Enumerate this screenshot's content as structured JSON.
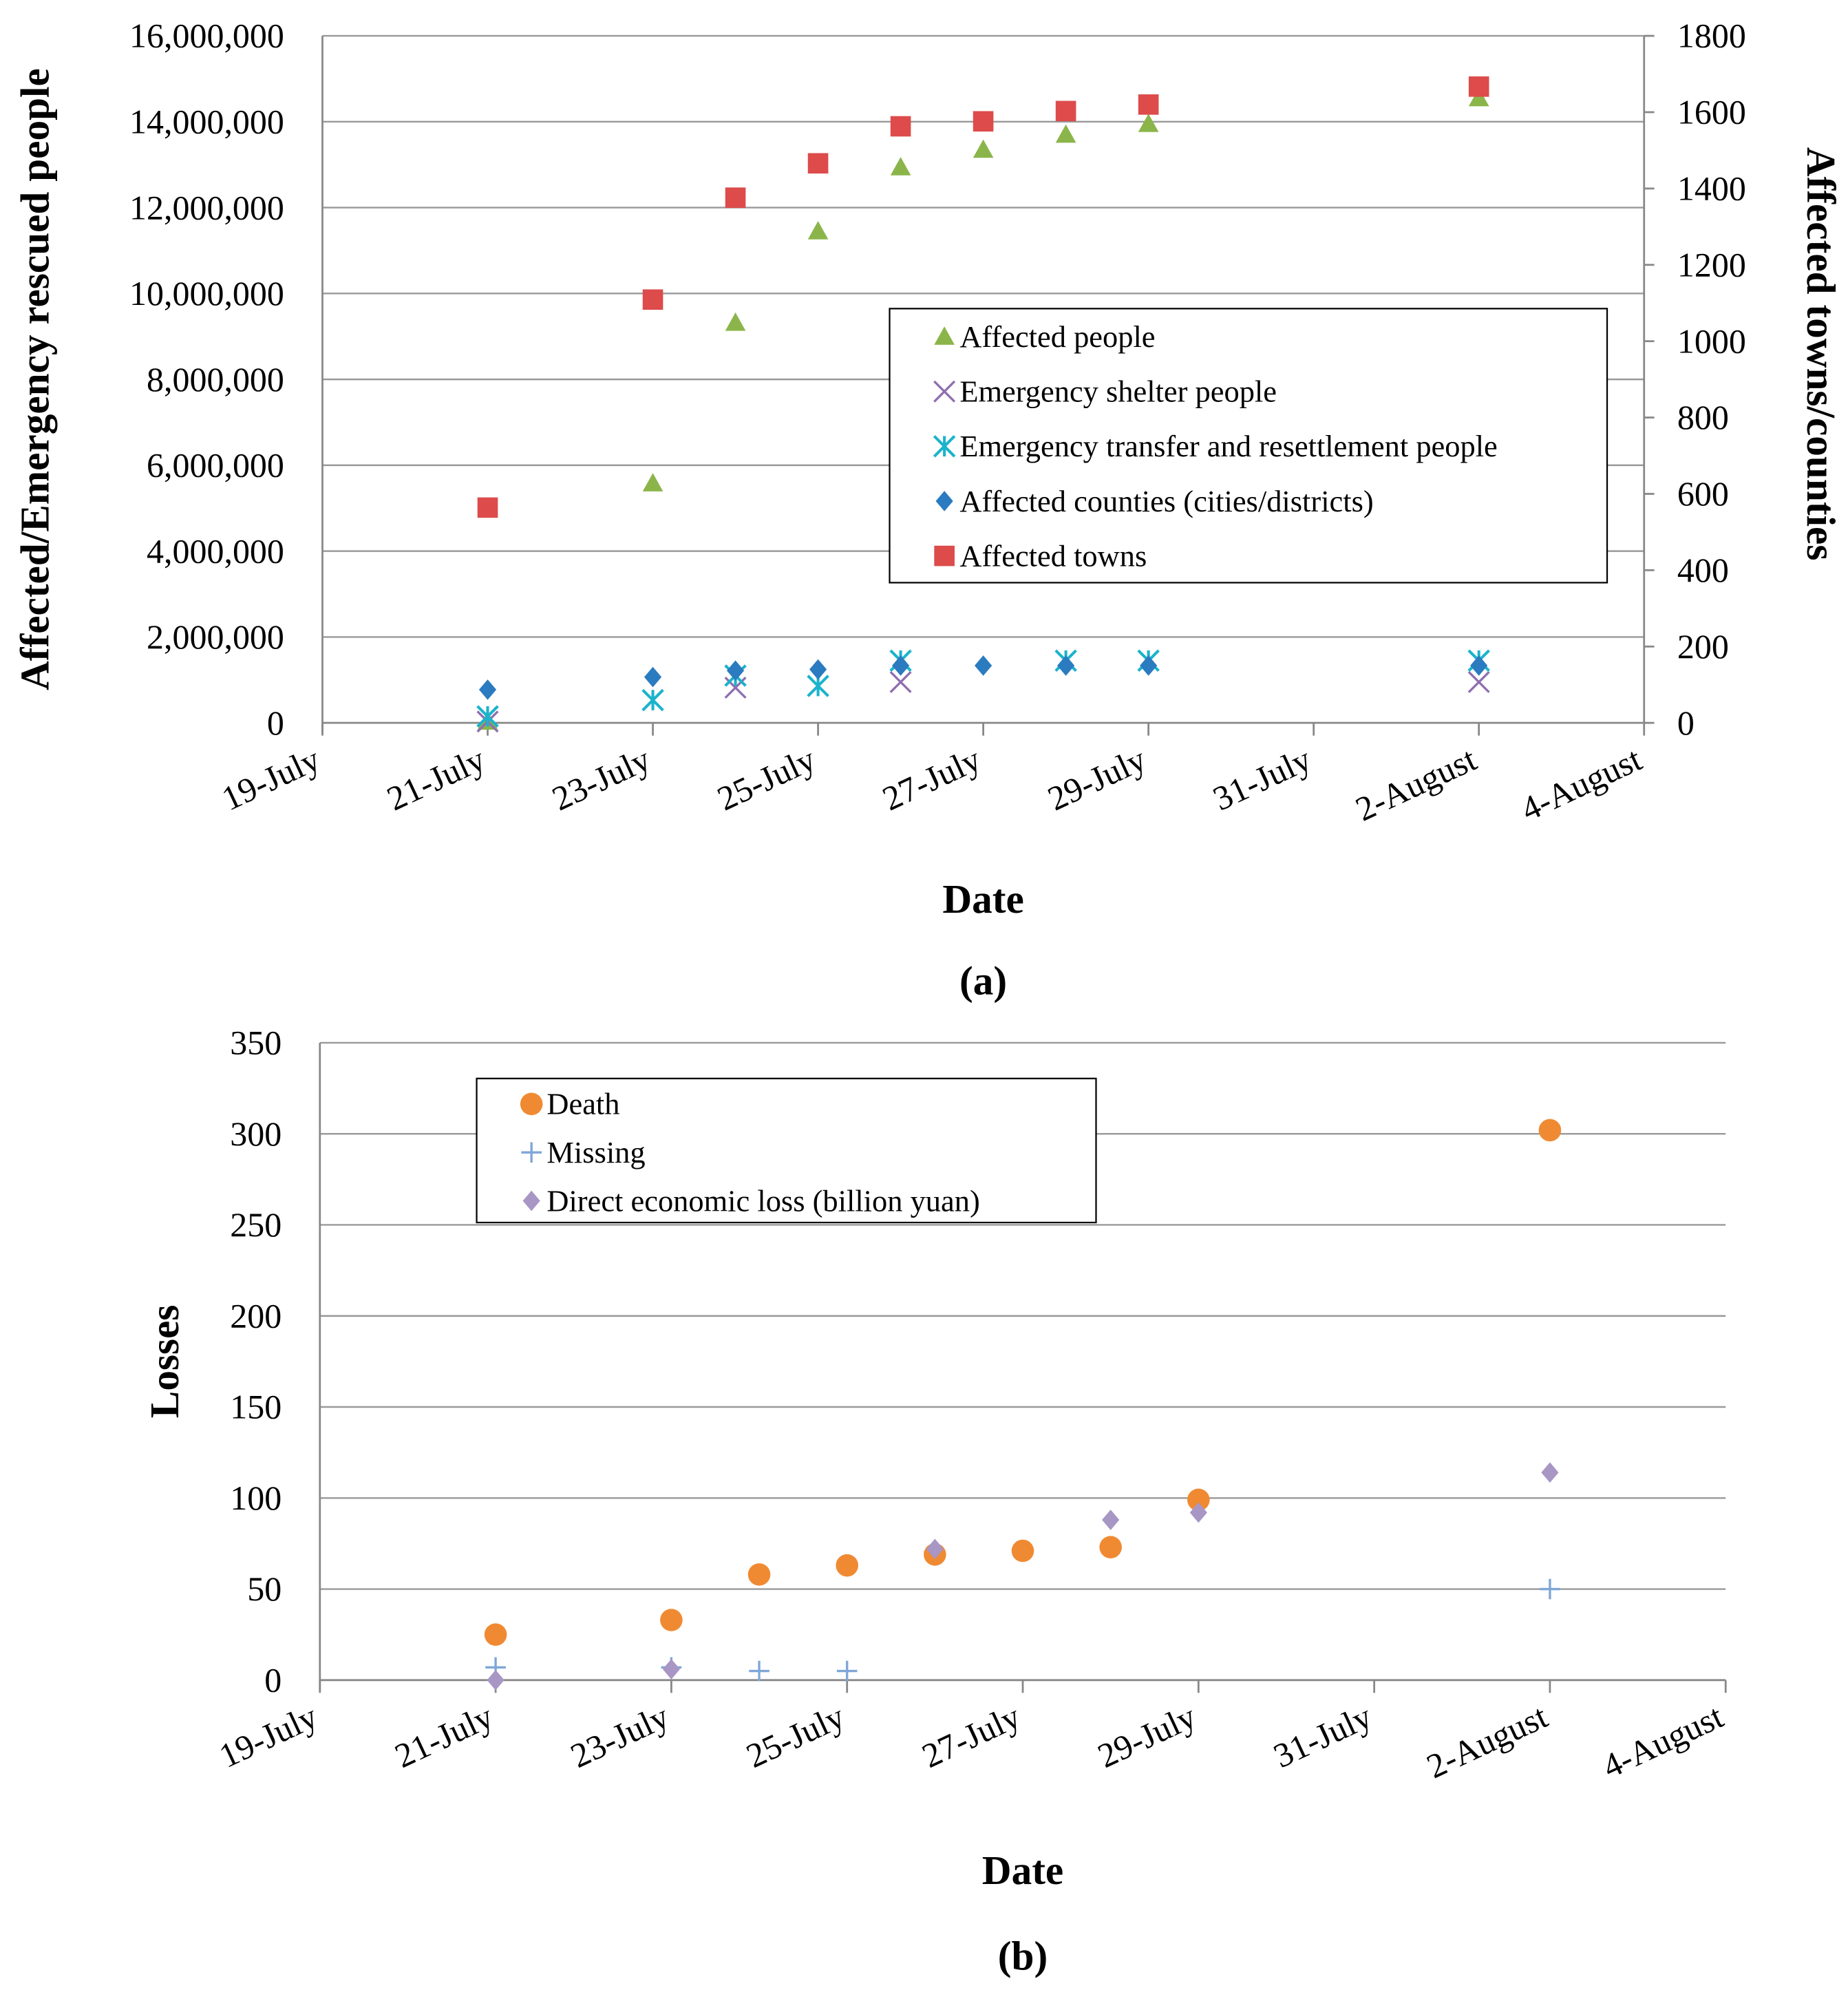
{
  "chart_data": [
    {
      "type": "scatter",
      "panel_label": "(a)",
      "xlabel": "Date",
      "ylabel": "Affected/Emergency  rescued people",
      "y2label": "Affected towns/counties",
      "x_ticks": [
        "19-July",
        "21-July",
        "23-July",
        "25-July",
        "27-July",
        "29-July",
        "31-July",
        "2-August",
        "4-August"
      ],
      "xlim_days": [
        0,
        16
      ],
      "ylim": [
        0,
        16000000
      ],
      "y_ticks": [
        "0",
        "2,000,000",
        "4,000,000",
        "6,000,000",
        "8,000,000",
        "10,000,000",
        "12,000,000",
        "14,000,000",
        "16,000,000"
      ],
      "y2lim": [
        0,
        1800
      ],
      "y2_ticks": [
        "0",
        "200",
        "400",
        "600",
        "800",
        "1000",
        "1200",
        "1400",
        "1600",
        "1800"
      ],
      "grid": true,
      "legend_position": "center-right",
      "x_unit": "days since 19-July",
      "series": [
        {
          "name": "Affected people",
          "axis": "left",
          "marker": "triangle",
          "color": "#8BB54A",
          "x": [
            2,
            4,
            5,
            6,
            7,
            8,
            9,
            10,
            14
          ],
          "y": [
            30000,
            5580000,
            9320000,
            11450000,
            12940000,
            13350000,
            13700000,
            13950000,
            14550000
          ]
        },
        {
          "name": "Emergency shelter people",
          "axis": "left",
          "marker": "x",
          "color": "#8E6FB0",
          "x": [
            2,
            5,
            7,
            14
          ],
          "y": [
            30000,
            820000,
            950000,
            950000
          ]
        },
        {
          "name": "Emergency transfer and resettlement people",
          "axis": "left",
          "marker": "asterisk",
          "color": "#1BB3CC",
          "x": [
            2,
            4,
            5,
            6,
            7,
            9,
            10,
            14
          ],
          "y": [
            150000,
            530000,
            1100000,
            860000,
            1450000,
            1450000,
            1450000,
            1450000
          ]
        },
        {
          "name": "Affected counties (cities/districts)",
          "axis": "right",
          "marker": "diamond",
          "color": "#2A7BC0",
          "x": [
            2,
            4,
            5,
            6,
            7,
            8,
            9,
            10,
            14
          ],
          "y": [
            87,
            120,
            137,
            140,
            150,
            150,
            150,
            150,
            150
          ]
        },
        {
          "name": "Affected towns",
          "axis": "right",
          "marker": "square",
          "color": "#DD4B4B",
          "x": [
            2,
            4,
            5,
            6,
            7,
            8,
            9,
            10,
            14
          ],
          "y": [
            564,
            1109,
            1376,
            1466,
            1563,
            1576,
            1603,
            1620,
            1667
          ]
        }
      ]
    },
    {
      "type": "scatter",
      "panel_label": "(b)",
      "xlabel": "Date",
      "ylabel": "Losses",
      "x_ticks": [
        "19-July",
        "21-July",
        "23-July",
        "25-July",
        "27-July",
        "29-July",
        "31-July",
        "2-August",
        "4-August"
      ],
      "xlim_days": [
        0,
        16
      ],
      "ylim": [
        0,
        350
      ],
      "y_ticks": [
        "0",
        "50",
        "100",
        "150",
        "200",
        "250",
        "300",
        "350"
      ],
      "grid": true,
      "legend_position": "top-left",
      "x_unit": "days since 19-July",
      "series": [
        {
          "name": "Death",
          "marker": "circle",
          "color": "#F08A32",
          "x": [
            2,
            4,
            5,
            6,
            7,
            8,
            9,
            10,
            14
          ],
          "y": [
            25,
            33,
            58,
            63,
            69,
            71,
            73,
            99,
            302
          ]
        },
        {
          "name": "Missing",
          "marker": "plus",
          "color": "#7FA6D8",
          "x": [
            2,
            4,
            5,
            6,
            14
          ],
          "y": [
            7,
            7,
            5,
            5,
            50
          ]
        },
        {
          "name": "Direct economic loss (billion yuan)",
          "marker": "diamond",
          "color": "#A896C4",
          "x": [
            2,
            4,
            7,
            9,
            10,
            14
          ],
          "y": [
            0,
            6,
            72,
            88,
            92,
            114
          ]
        }
      ]
    }
  ]
}
